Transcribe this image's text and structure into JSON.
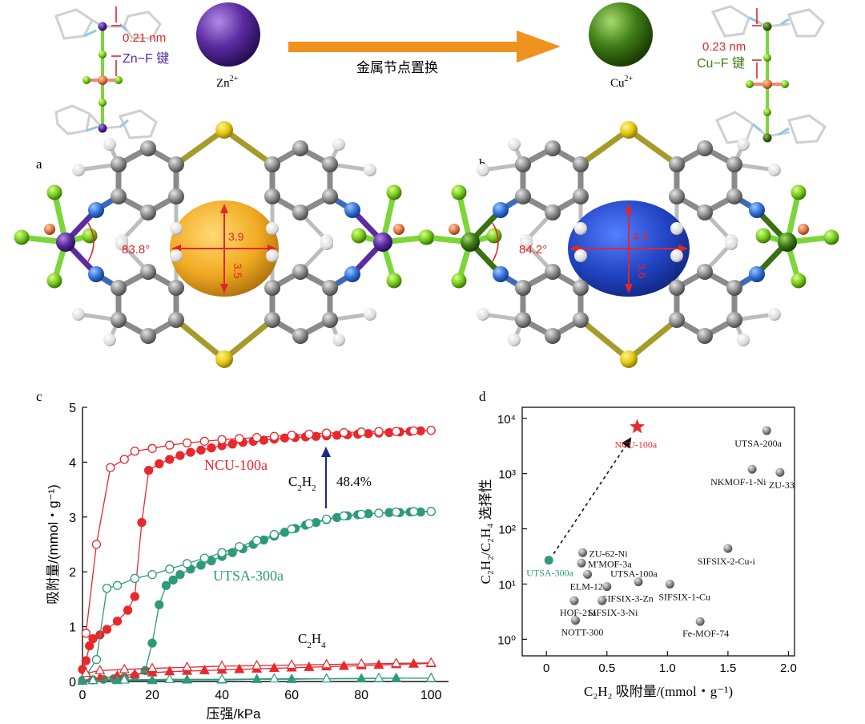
{
  "panel_labels": {
    "a": "a",
    "b": "b",
    "c": "c",
    "d": "d"
  },
  "top": {
    "zn_bond_length": "0.21 nm",
    "zn_bond_label": "Zn−F 键",
    "zn_ion": "Zn",
    "cu_bond_length": "0.23 nm",
    "cu_bond_label": "Cu−F 键",
    "cu_ion": "Cu",
    "ion_charge": "2+",
    "arrow_label": "金属节点置换",
    "colors": {
      "zn": "#5b2ca0",
      "cu": "#3f7d16",
      "arrow": "#f0921e",
      "bond_text": "#e0262d"
    }
  },
  "structures": {
    "a": {
      "angle": "83.8°",
      "pore_w": "3.9",
      "pore_h": "3.5",
      "pore_color": "#f0a71a"
    },
    "b": {
      "angle": "84.2°",
      "pore_w": "4.3",
      "pore_h": "3.6",
      "pore_color": "#1a3fc2"
    }
  },
  "chart_data": [
    {
      "type": "line",
      "panel": "c",
      "xlabel": "压强/kPa",
      "ylabel": "吸附量/(mmol・g⁻¹)",
      "xlim": [
        0,
        105
      ],
      "ylim": [
        0,
        5
      ],
      "xticks": [
        0,
        20,
        40,
        60,
        80,
        100
      ],
      "yticks": [
        0,
        1,
        2,
        3,
        4,
        5
      ],
      "annotations": {
        "ncu": "NCU-100a",
        "utsa": "UTSA-300a",
        "c2h2_base": "C",
        "c2h2_sub": "2",
        "c2h2_h": "H",
        "c2h2_sub2": "2",
        "percent": "48.4%",
        "c2h4_base": "C",
        "c2h4_sub": "2",
        "c2h4_h": "H",
        "c2h4_sub2": "4"
      },
      "series": [
        {
          "name": "NCU-100a C2H2 adsorption",
          "color": "#e8282d",
          "marker": "filled-circle",
          "x": [
            0,
            1,
            2,
            3,
            5,
            7,
            10,
            13,
            15,
            17,
            19,
            22,
            25,
            28,
            31,
            34,
            37,
            40,
            43,
            46,
            49,
            52,
            55,
            58,
            61,
            64,
            67,
            70,
            73,
            76,
            79,
            82,
            85,
            88,
            91,
            94,
            97,
            100
          ],
          "y": [
            0.22,
            0.38,
            0.65,
            0.78,
            0.85,
            0.95,
            1.1,
            1.3,
            1.55,
            2.9,
            3.85,
            3.97,
            4.05,
            4.12,
            4.18,
            4.22,
            4.26,
            4.3,
            4.33,
            4.36,
            4.38,
            4.4,
            4.42,
            4.44,
            4.45,
            4.46,
            4.47,
            4.48,
            4.49,
            4.5,
            4.51,
            4.52,
            4.53,
            4.54,
            4.55,
            4.56,
            4.57,
            4.58
          ]
        },
        {
          "name": "NCU-100a C2H2 desorption",
          "color": "#e8282d",
          "marker": "open-circle",
          "x": [
            100,
            95,
            90,
            85,
            80,
            75,
            70,
            65,
            60,
            55,
            50,
            45,
            40,
            35,
            30,
            25,
            20,
            15,
            12,
            8,
            4,
            1
          ],
          "y": [
            4.58,
            4.57,
            4.56,
            4.56,
            4.55,
            4.54,
            4.53,
            4.51,
            4.49,
            4.47,
            4.45,
            4.43,
            4.41,
            4.38,
            4.35,
            4.31,
            4.25,
            4.2,
            4.05,
            3.9,
            2.5,
            0.88
          ]
        },
        {
          "name": "UTSA-300a C2H2 adsorption",
          "color": "#2e9a7a",
          "marker": "filled-circle",
          "x": [
            0,
            3,
            6,
            9,
            12,
            15,
            18,
            20,
            22,
            24,
            26,
            28,
            31,
            34,
            37,
            40,
            43,
            46,
            49,
            52,
            55,
            58,
            61,
            64,
            67,
            70,
            73,
            76,
            79,
            82,
            85,
            88,
            91,
            94,
            97,
            100
          ],
          "y": [
            0.02,
            0.03,
            0.04,
            0.05,
            0.07,
            0.1,
            0.2,
            0.7,
            1.4,
            1.75,
            1.85,
            1.95,
            2.05,
            2.12,
            2.2,
            2.28,
            2.35,
            2.42,
            2.5,
            2.58,
            2.65,
            2.72,
            2.79,
            2.85,
            2.9,
            2.95,
            2.99,
            3.02,
            3.04,
            3.06,
            3.07,
            3.08,
            3.08,
            3.09,
            3.09,
            3.1
          ]
        },
        {
          "name": "UTSA-300a C2H2 desorption",
          "color": "#2e9a7a",
          "marker": "open-circle",
          "x": [
            100,
            95,
            90,
            85,
            80,
            75,
            70,
            65,
            60,
            55,
            50,
            45,
            40,
            35,
            30,
            25,
            20,
            15,
            10,
            7,
            4,
            1
          ],
          "y": [
            3.1,
            3.1,
            3.09,
            3.07,
            3.05,
            3.02,
            2.96,
            2.88,
            2.78,
            2.68,
            2.57,
            2.46,
            2.35,
            2.25,
            2.15,
            2.05,
            1.95,
            1.88,
            1.75,
            1.7,
            0.4,
            0.1
          ]
        },
        {
          "name": "NCU-100a C2H4 adsorption",
          "color": "#e8282d",
          "marker": "filled-triangle",
          "x": [
            0,
            5,
            10,
            15,
            20,
            25,
            30,
            35,
            40,
            45,
            50,
            55,
            60,
            65,
            70,
            75,
            80,
            85,
            90,
            95,
            100
          ],
          "y": [
            0.02,
            0.06,
            0.1,
            0.13,
            0.16,
            0.18,
            0.19,
            0.2,
            0.21,
            0.22,
            0.23,
            0.24,
            0.25,
            0.26,
            0.27,
            0.28,
            0.29,
            0.3,
            0.31,
            0.32,
            0.33
          ]
        },
        {
          "name": "NCU-100a C2H4 desorption",
          "color": "#e8282d",
          "marker": "open-triangle",
          "x": [
            100,
            90,
            80,
            70,
            60,
            50,
            40,
            30,
            20,
            12,
            5,
            1
          ],
          "y": [
            0.34,
            0.33,
            0.32,
            0.31,
            0.3,
            0.29,
            0.28,
            0.26,
            0.24,
            0.22,
            0.2,
            0.15
          ]
        },
        {
          "name": "UTSA-300a C2H4 adsorption",
          "color": "#2e9a7a",
          "marker": "filled-triangle",
          "x": [
            0,
            10,
            20,
            30,
            40,
            50,
            60,
            70,
            80,
            90,
            100
          ],
          "y": [
            0.01,
            0.02,
            0.02,
            0.03,
            0.03,
            0.04,
            0.04,
            0.05,
            0.05,
            0.06,
            0.06
          ]
        },
        {
          "name": "UTSA-300a C2H4 desorption",
          "color": "#2e9a7a",
          "marker": "open-triangle",
          "x": [
            100,
            85,
            70,
            55,
            40,
            25,
            12,
            3
          ],
          "y": [
            0.06,
            0.06,
            0.05,
            0.05,
            0.04,
            0.04,
            0.03,
            0.02
          ]
        }
      ]
    },
    {
      "type": "scatter",
      "panel": "d",
      "xlabel": "C₂H₂ 吸附量/(mmol・g⁻¹)",
      "ylabel": "C₂H₂/C₂H₄ 选择性",
      "xlim": [
        -0.2,
        2.05
      ],
      "ylim_log10": [
        -0.3,
        4.2
      ],
      "log_y": true,
      "xticks": [
        "0",
        "0.5",
        "1.0",
        "1.5",
        "2.0"
      ],
      "yticks": [
        "10⁰",
        "10¹",
        "10²",
        "10³",
        "10⁴"
      ],
      "points": [
        {
          "label": "NCU-100a",
          "x": 0.75,
          "y": 7000,
          "color": "#e8282d",
          "marker": "star"
        },
        {
          "label": "UTSA-200a",
          "x": 1.82,
          "y": 6000,
          "color": "#9a9a9a"
        },
        {
          "label": "NKMOF-1-Ni",
          "x": 1.7,
          "y": 1200,
          "color": "#9a9a9a"
        },
        {
          "label": "ZU-33",
          "x": 1.93,
          "y": 1050,
          "color": "#9a9a9a"
        },
        {
          "label": "SIFSIX-2-Cu-i",
          "x": 1.5,
          "y": 44,
          "color": "#9a9a9a"
        },
        {
          "label": "ZU-62-Ni",
          "x": 0.3,
          "y": 37,
          "color": "#9a9a9a"
        },
        {
          "label": "M′MOF-3a",
          "x": 0.29,
          "y": 24,
          "color": "#9a9a9a"
        },
        {
          "label": "UTSA-300a",
          "x": 0.02,
          "y": 27,
          "color": "#2e9a7a"
        },
        {
          "label": "ELM-12",
          "x": 0.34,
          "y": 15,
          "color": "#9a9a9a"
        },
        {
          "label": "UTSA-100a",
          "x": 0.76,
          "y": 11,
          "color": "#9a9a9a"
        },
        {
          "label": "SIFSIX-1-Cu",
          "x": 1.02,
          "y": 10,
          "color": "#9a9a9a"
        },
        {
          "label": "SIFSIX-3-Zn",
          "x": 0.5,
          "y": 9,
          "color": "#9a9a9a"
        },
        {
          "label": "HOF-21a",
          "x": 0.23,
          "y": 5,
          "color": "#9a9a9a"
        },
        {
          "label": "SIFSIX-3-Ni",
          "x": 0.46,
          "y": 5,
          "color": "#9a9a9a"
        },
        {
          "label": "NOTT-300",
          "x": 0.24,
          "y": 2.2,
          "color": "#9a9a9a"
        },
        {
          "label": "Fe-MOF-74",
          "x": 1.27,
          "y": 2.1,
          "color": "#9a9a9a"
        }
      ],
      "arrow": {
        "from": "UTSA-300a",
        "to": "NCU-100a",
        "style": "dashed"
      }
    }
  ]
}
